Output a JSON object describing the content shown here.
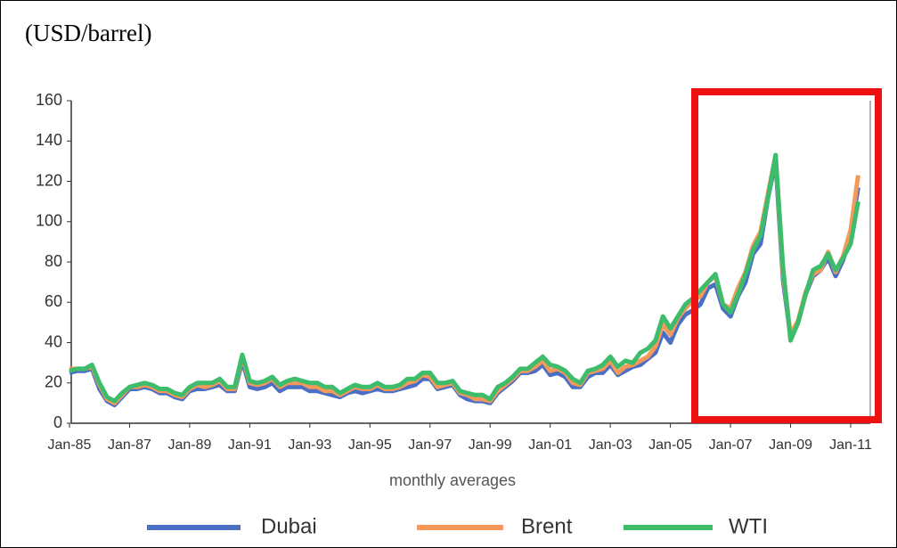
{
  "chart_data": {
    "type": "line",
    "title": "(USD/barrel)",
    "x_label": "monthly averages",
    "categories": [
      "Jan-85",
      null,
      null,
      null,
      null,
      null,
      null,
      null,
      "Jan-87",
      null,
      null,
      null,
      null,
      null,
      null,
      null,
      "Jan-89",
      null,
      null,
      null,
      null,
      null,
      null,
      null,
      "Jan-91",
      null,
      null,
      null,
      null,
      null,
      null,
      null,
      "Jan-93",
      null,
      null,
      null,
      null,
      null,
      null,
      null,
      "Jan-95",
      null,
      null,
      null,
      null,
      null,
      null,
      null,
      "Jan-97",
      null,
      null,
      null,
      null,
      null,
      null,
      null,
      "Jan-99",
      null,
      null,
      null,
      null,
      null,
      null,
      null,
      "Jan-01",
      null,
      null,
      null,
      null,
      null,
      null,
      null,
      "Jan-03",
      null,
      null,
      null,
      null,
      null,
      null,
      null,
      "Jan-05",
      null,
      null,
      null,
      null,
      null,
      null,
      null,
      "Jan-07",
      null,
      null,
      null,
      null,
      null,
      null,
      null,
      "Jan-09",
      null,
      null,
      null,
      null,
      null,
      null,
      null,
      "Jan-11",
      null
    ],
    "series": [
      {
        "name": "Dubai",
        "color": "#4a6fc4",
        "values": [
          25,
          26,
          26,
          27,
          17,
          11,
          9,
          13,
          17,
          17,
          18,
          17,
          15,
          15,
          13,
          12,
          16,
          17,
          17,
          18,
          19,
          16,
          16,
          31,
          18,
          17,
          18,
          20,
          16,
          18,
          18,
          18,
          16,
          16,
          15,
          14,
          13,
          15,
          16,
          15,
          16,
          17,
          16,
          16,
          17,
          18,
          19,
          22,
          22,
          17,
          18,
          19,
          14,
          12,
          11,
          11,
          10,
          15,
          18,
          21,
          25,
          25,
          26,
          29,
          24,
          25,
          23,
          18,
          18,
          23,
          25,
          25,
          29,
          24,
          26,
          28,
          29,
          32,
          35,
          45,
          40,
          49,
          54,
          56,
          59,
          67,
          69,
          57,
          53,
          63,
          70,
          84,
          89,
          112,
          130,
          71,
          43,
          50,
          64,
          73,
          76,
          82,
          73,
          81,
          95,
          117
        ]
      },
      {
        "name": "Brent",
        "color": "#f4995a",
        "values": [
          27,
          27,
          27,
          28,
          19,
          12,
          10,
          14,
          18,
          18,
          19,
          18,
          16,
          16,
          14,
          13,
          17,
          19,
          18,
          19,
          21,
          17,
          17,
          33,
          20,
          19,
          20,
          22,
          18,
          20,
          20,
          20,
          18,
          18,
          16,
          16,
          14,
          16,
          18,
          17,
          17,
          19,
          17,
          17,
          18,
          20,
          21,
          24,
          23,
          18,
          19,
          20,
          15,
          14,
          12,
          12,
          11,
          16,
          19,
          22,
          26,
          26,
          28,
          31,
          26,
          27,
          25,
          20,
          19,
          25,
          26,
          27,
          31,
          25,
          28,
          29,
          31,
          33,
          38,
          49,
          44,
          52,
          57,
          61,
          63,
          70,
          73,
          59,
          57,
          67,
          75,
          88,
          95,
          114,
          133,
          74,
          44,
          51,
          65,
          74,
          76,
          85,
          75,
          83,
          96,
          123
        ]
      },
      {
        "name": "WTI",
        "color": "#3dbd6c",
        "values": [
          26,
          27,
          27,
          29,
          20,
          13,
          11,
          15,
          18,
          19,
          20,
          19,
          17,
          17,
          15,
          14,
          18,
          20,
          20,
          20,
          22,
          18,
          18,
          34,
          21,
          20,
          21,
          23,
          19,
          21,
          22,
          21,
          20,
          20,
          18,
          18,
          15,
          17,
          19,
          18,
          18,
          20,
          18,
          18,
          19,
          22,
          22,
          25,
          25,
          20,
          20,
          21,
          16,
          15,
          14,
          14,
          12,
          18,
          20,
          23,
          27,
          27,
          30,
          33,
          29,
          28,
          26,
          22,
          20,
          26,
          27,
          29,
          33,
          28,
          31,
          30,
          35,
          37,
          41,
          53,
          47,
          53,
          59,
          62,
          66,
          70,
          74,
          59,
          55,
          64,
          74,
          86,
          93,
          112,
          133,
          77,
          41,
          50,
          64,
          76,
          78,
          84,
          76,
          82,
          89,
          110
        ]
      }
    ],
    "ylim": [
      0,
      160
    ],
    "yticks": [
      0,
      20,
      40,
      60,
      80,
      100,
      120,
      140,
      160
    ]
  }
}
